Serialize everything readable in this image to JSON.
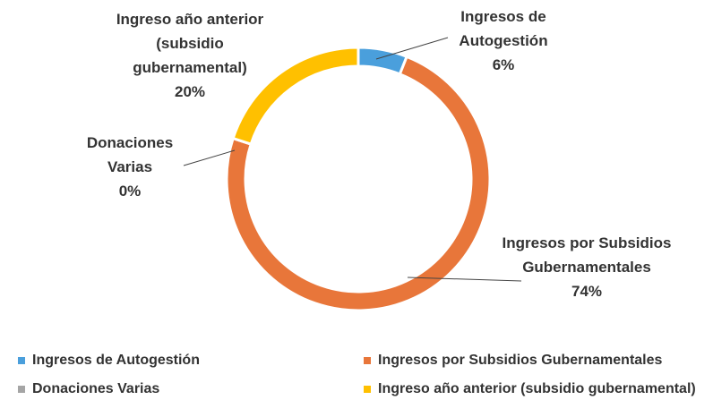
{
  "chart_data": {
    "type": "donut",
    "categories": [
      "Ingresos de Autogestión",
      "Ingresos por Subsidios Gubernamentales",
      "Donaciones Varias",
      "Ingreso año anterior (subsidio gubernamental)"
    ],
    "values": [
      6,
      74,
      0,
      20
    ],
    "value_labels": [
      "6%",
      "74%",
      "0%",
      "20%"
    ],
    "colors": [
      "#4a9fdc",
      "#e8763a",
      "#a5a5a5",
      "#ffc000"
    ],
    "legend": "bottom"
  }
}
